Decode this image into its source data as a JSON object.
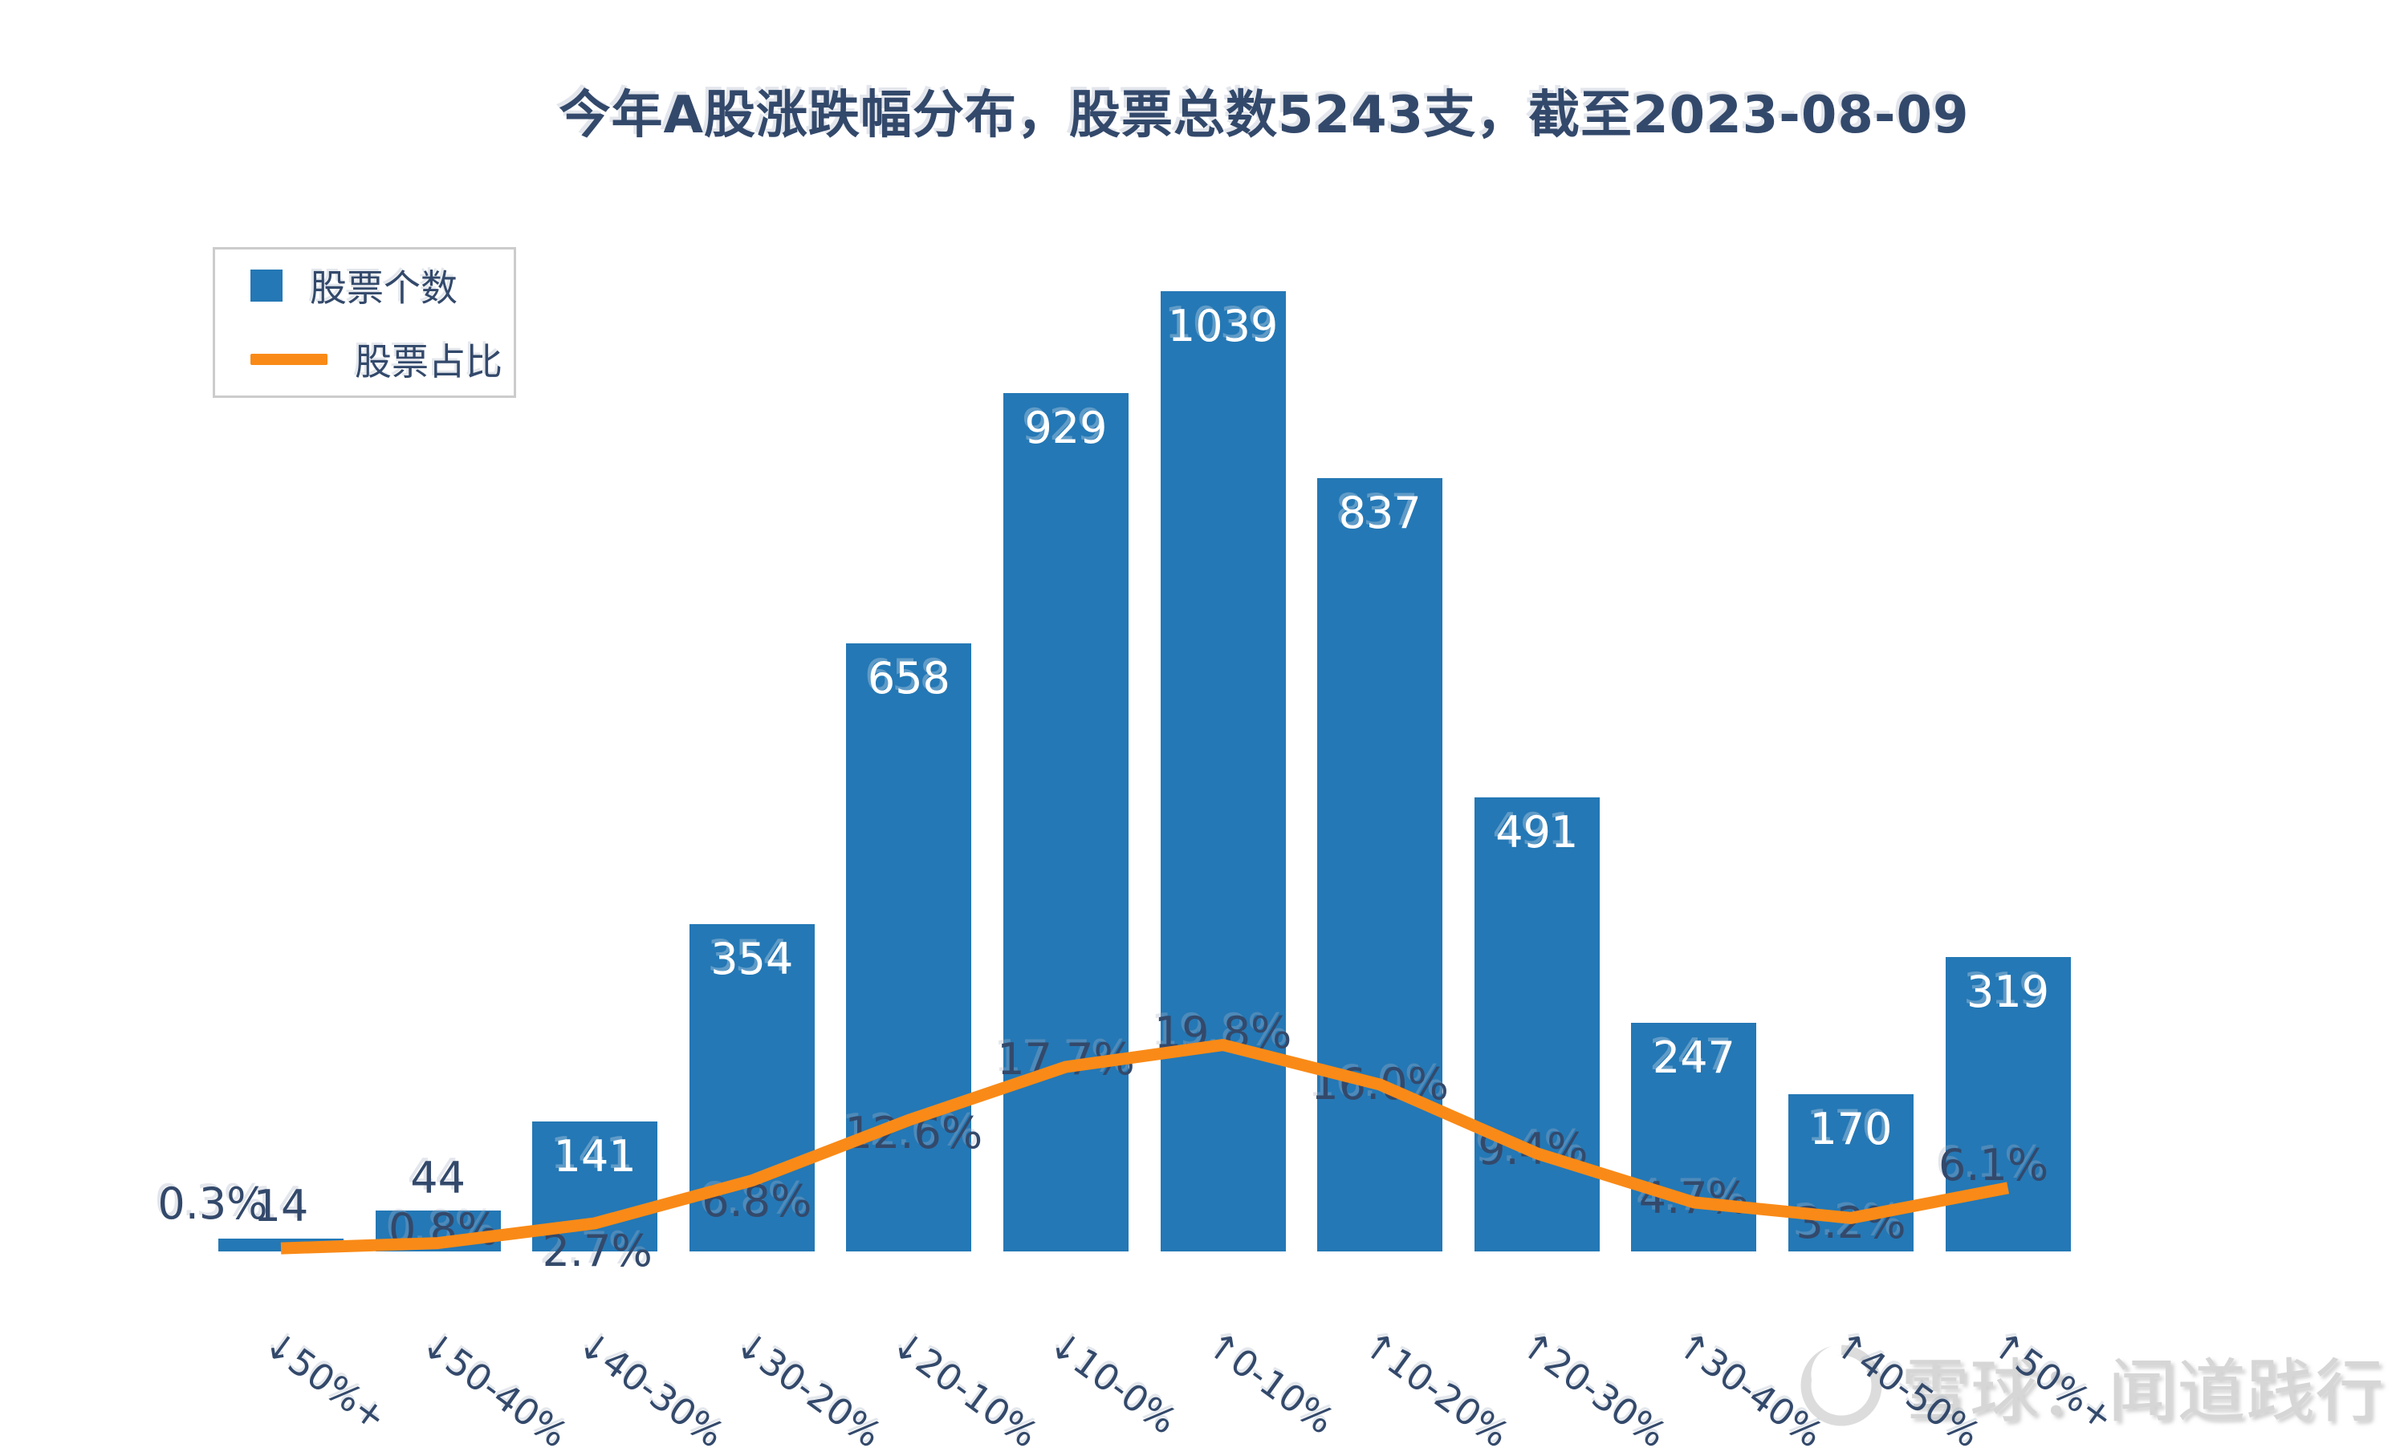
{
  "title": "今年A股涨跌幅分布，股票总数5243支，截至2023-08-09",
  "legend": {
    "bar_label": "股票个数",
    "line_label": "股票占比"
  },
  "chart_data": {
    "type": "bar+line",
    "title": "今年A股涨跌幅分布，股票总数5243支，截至2023-08-09",
    "total_stocks": 5243,
    "as_of_date": "2023-08-09",
    "categories": [
      "↓50%+",
      "↓50-40%",
      "↓40-30%",
      "↓30-20%",
      "↓20-10%",
      "↓10-0%",
      "↑0-10%",
      "↑10-20%",
      "↑20-30%",
      "↑30-40%",
      "↑40-50%",
      "↑50%+"
    ],
    "series": [
      {
        "name": "股票个数",
        "type": "bar",
        "values": [
          14,
          44,
          141,
          354,
          658,
          929,
          1039,
          837,
          491,
          247,
          170,
          319
        ],
        "color": "#2478B5"
      },
      {
        "name": "股票占比",
        "type": "line",
        "values_pct": [
          0.3,
          0.8,
          2.7,
          6.8,
          12.6,
          17.7,
          19.8,
          16.0,
          9.4,
          4.7,
          3.2,
          6.1
        ],
        "color": "#F98A17"
      }
    ],
    "bar_value_label_color_inside": "#ffffff",
    "bar_value_label_color_above": "#33496B",
    "pct_label_color": "#33496B",
    "grid": false,
    "axes_visible": false,
    "legend_position": "upper-left",
    "xlabel": "",
    "ylabel": ""
  },
  "watermark": {
    "text": "雪球：闻道践行",
    "logo": "xueqiu-snowball-icon",
    "color": "#D6D6D6"
  },
  "colors": {
    "bar_blue": "#2478B5",
    "line_orange": "#F98A17",
    "text_navy": "#33496B",
    "legend_border": "#CCCCCC",
    "watermark_gray": "#D6D6D6",
    "background": "#FFFFFF"
  }
}
